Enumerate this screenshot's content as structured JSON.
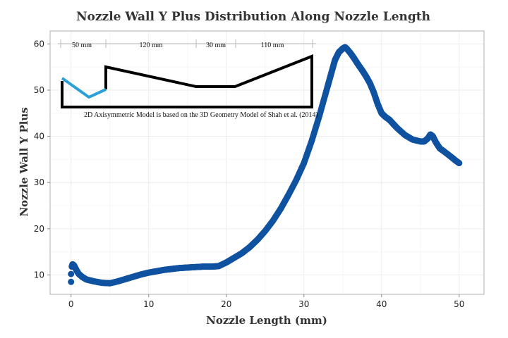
{
  "chart_data": {
    "type": "scatter",
    "title": "Nozzle Wall Y Plus Distribution Along Nozzle Length",
    "xlabel": "Nozzle Length (mm)",
    "ylabel": "Nozzle Wall Y Plus",
    "xlim": [
      -2.7,
      53.2
    ],
    "ylim": [
      5.8,
      62.8
    ],
    "xticks": [
      0,
      10,
      20,
      30,
      40,
      50
    ],
    "yticks": [
      10,
      20,
      30,
      40,
      50,
      60
    ],
    "grid": true,
    "marker_color": "#0f52a0",
    "series": [
      {
        "x": [
          0.0,
          0.0,
          0.1,
          0.2,
          0.4,
          0.7,
          1.0,
          1.5,
          2.0,
          3.0,
          4.0,
          5.0,
          6.0,
          7.0,
          8.0,
          9.0,
          10.0,
          11.0,
          12.0,
          13.0,
          14.0,
          15.0,
          16.0,
          17.0,
          18.0,
          19.0,
          20.0,
          21.0,
          22.0,
          23.0,
          24.0,
          25.0,
          26.0,
          27.0,
          28.0,
          29.0,
          30.0,
          31.0,
          32.0,
          33.0,
          33.5,
          34.0,
          34.5,
          35.0,
          35.3,
          35.6,
          36.0,
          36.5,
          37.0,
          37.5,
          38.0,
          38.5,
          39.0,
          39.5,
          40.0,
          40.5,
          41.0,
          41.5,
          42.0,
          43.0,
          44.0,
          45.0,
          45.5,
          46.0,
          46.3,
          46.6,
          47.0,
          47.5,
          48.0,
          49.0,
          49.5,
          50.0
        ],
        "y": [
          8.5,
          10.2,
          11.8,
          12.3,
          12.0,
          11.0,
          10.2,
          9.5,
          9.0,
          8.6,
          8.3,
          8.2,
          8.6,
          9.1,
          9.6,
          10.1,
          10.5,
          10.8,
          11.1,
          11.3,
          11.5,
          11.6,
          11.7,
          11.8,
          11.8,
          11.9,
          12.7,
          13.7,
          14.7,
          16.0,
          17.6,
          19.5,
          21.7,
          24.3,
          27.3,
          30.5,
          34.2,
          39.0,
          44.5,
          50.5,
          53.5,
          56.5,
          58.2,
          59.0,
          59.3,
          58.8,
          58.0,
          56.8,
          55.5,
          54.3,
          53.0,
          51.5,
          49.5,
          47.0,
          45.0,
          44.2,
          43.6,
          42.7,
          41.8,
          40.3,
          39.3,
          38.9,
          38.9,
          39.6,
          40.4,
          40.0,
          38.7,
          37.4,
          36.8,
          35.5,
          34.8,
          34.2
        ]
      }
    ]
  },
  "inset": {
    "dim_labels": [
      "50 mm",
      "120 mm",
      "30 mm",
      "110 mm"
    ],
    "caption": "2D Axisymmetric Model is based on the 3D Geometry Model of Shah et al. (2014)",
    "outline_color": "#000000",
    "highlight_color": "#2a9fd8"
  }
}
